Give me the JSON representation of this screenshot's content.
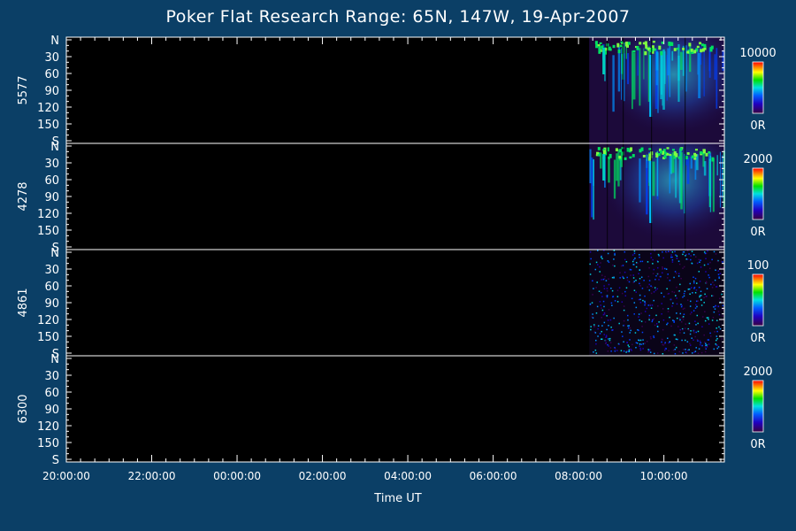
{
  "chart_data": {
    "type": "heatmap",
    "title": "Poker Flat Research Range: 65N, 147W, 19-Apr-2007",
    "xlabel": "Time UT",
    "x_ticks": [
      "20:00:00",
      "22:00:00",
      "00:00:00",
      "02:00:00",
      "04:00:00",
      "06:00:00",
      "08:00:00",
      "10:00:00"
    ],
    "x_range": [
      "20:00:00",
      "11:25:00"
    ],
    "y_ticks": [
      "N",
      "30",
      "60",
      "90",
      "120",
      "150",
      "S"
    ],
    "y_range": [
      0,
      180
    ],
    "data_start": "08:15:00",
    "panels": [
      {
        "label": "5577",
        "scale_max": "10000",
        "scale_min": "0R",
        "intensity": "strong"
      },
      {
        "label": "4278",
        "scale_max": "2000",
        "scale_min": "0R",
        "intensity": "strong"
      },
      {
        "label": "4861",
        "scale_max": "100",
        "scale_min": "0R",
        "intensity": "noise"
      },
      {
        "label": "6300",
        "scale_max": "2000",
        "scale_min": "0R",
        "intensity": "none"
      }
    ],
    "colors": {
      "background": "#0b3f66",
      "plot": "#000000",
      "axis": "#ffffff"
    }
  }
}
